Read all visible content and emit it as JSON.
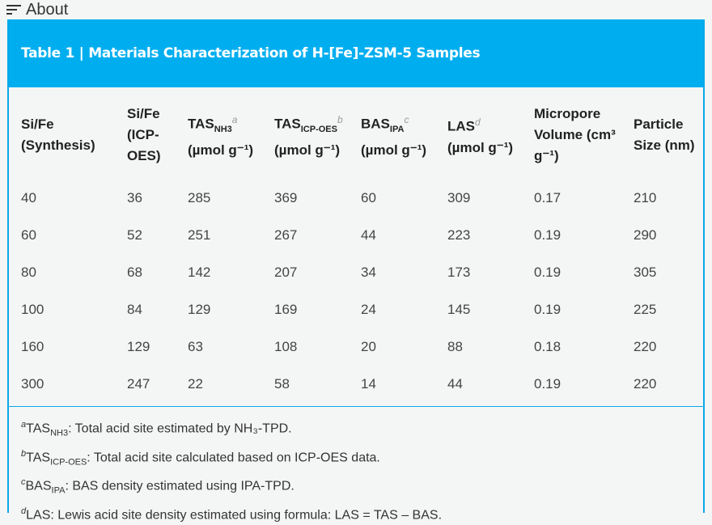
{
  "topbar": {
    "label": "About",
    "icon": "menu-icon"
  },
  "table": {
    "title": "Table 1 | Materials Characterization of H-[Fe]-ZSM-5 Samples",
    "headers": [
      {
        "main": "Si/Fe (Synthesis)"
      },
      {
        "main": "Si/Fe (ICP-OES)"
      },
      {
        "main": "TAS",
        "sub": "NH3",
        "sup": "a",
        "unit": "(µmol g⁻¹)"
      },
      {
        "main": "TAS",
        "sub": "ICP-OES",
        "sup": "b",
        "unit": "(µmol g⁻¹)"
      },
      {
        "main": "BAS",
        "sub": "IPA",
        "sup": "c",
        "unit": "(µmol g⁻¹)"
      },
      {
        "main": "LAS",
        "sup": "d",
        "unit": "(µmol g⁻¹)"
      },
      {
        "main": "Micropore Volume (cm³ g⁻¹)"
      },
      {
        "main": "Particle Size (nm)"
      }
    ],
    "rows": [
      [
        "40",
        "36",
        "285",
        "369",
        "60",
        "309",
        "0.17",
        "210"
      ],
      [
        "60",
        "52",
        "251",
        "267",
        "44",
        "223",
        "0.19",
        "290"
      ],
      [
        "80",
        "68",
        "142",
        "207",
        "34",
        "173",
        "0.19",
        "305"
      ],
      [
        "100",
        "84",
        "129",
        "169",
        "24",
        "145",
        "0.19",
        "225"
      ],
      [
        "160",
        "129",
        "63",
        "108",
        "20",
        "88",
        "0.18",
        "220"
      ],
      [
        "300",
        "247",
        "22",
        "58",
        "14",
        "44",
        "0.19",
        "220"
      ]
    ]
  },
  "footnotes": [
    {
      "mark": "a",
      "term": "TAS",
      "sub": "NH3",
      "text": ": Total acid site estimated by NH₃-TPD."
    },
    {
      "mark": "b",
      "term": "TAS",
      "sub": "ICP-OES",
      "text": ": Total acid site calculated based on ICP-OES data."
    },
    {
      "mark": "c",
      "term": "BAS",
      "sub": "IPA",
      "text": ": BAS density estimated using IPA-TPD."
    },
    {
      "mark": "d",
      "term": "LAS",
      "sub": "",
      "text": ": Lewis acid site density estimated using formula: LAS = TAS – BAS."
    }
  ],
  "colors": {
    "accent": "#00aeef",
    "background": "#f4f6f5"
  }
}
